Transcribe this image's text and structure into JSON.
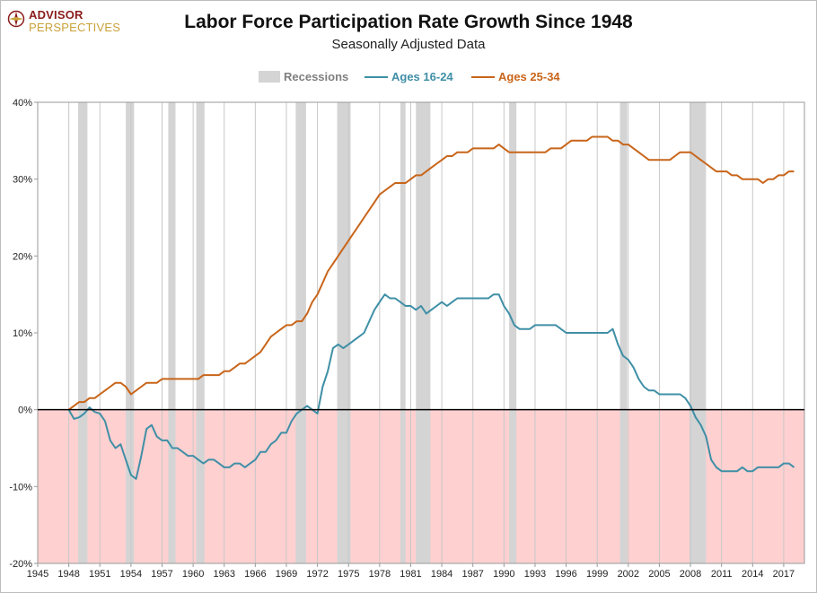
{
  "logo": {
    "line1": "ADVISOR",
    "line2": "PERSPECTIVES"
  },
  "title": "Labor Force Participation Rate Growth Since 1948",
  "subtitle": "Seasonally Adjusted Data",
  "legend": {
    "recessions": "Recessions",
    "series1": "Ages 16-24",
    "series2": "Ages 25-34"
  },
  "colors": {
    "ages_16_24": "#3f8fa6",
    "ages_25_34": "#c8651a",
    "recession": "#d4d4d4",
    "negative_zone": "#ffd0d0",
    "recession_legend_text": "#7f7f7f"
  },
  "chart_data": {
    "type": "line",
    "title": "Labor Force Participation Rate Growth Since 1948",
    "subtitle": "Seasonally Adjusted Data",
    "xlabel": "",
    "ylabel": "",
    "xlim": [
      1945,
      2019
    ],
    "ylim": [
      -20,
      40
    ],
    "y_ticks": [
      "-20%",
      "-10%",
      "0%",
      "10%",
      "20%",
      "30%",
      "40%"
    ],
    "y_tick_values": [
      -20,
      -10,
      0,
      10,
      20,
      30,
      40
    ],
    "x_ticks": [
      "1945",
      "1948",
      "1951",
      "1954",
      "1957",
      "1960",
      "1963",
      "1966",
      "1969",
      "1972",
      "1975",
      "1978",
      "1981",
      "1984",
      "1987",
      "1990",
      "1993",
      "1996",
      "1999",
      "2002",
      "2005",
      "2008",
      "2011",
      "2014",
      "2017"
    ],
    "grid": "vertical",
    "legend_position": "top-center",
    "negative_region_shaded": true,
    "recessions": [
      [
        1948.9,
        1949.8
      ],
      [
        1953.5,
        1954.3
      ],
      [
        1957.6,
        1958.3
      ],
      [
        1960.3,
        1961.1
      ],
      [
        1969.9,
        1970.9
      ],
      [
        1973.9,
        1975.2
      ],
      [
        1980.0,
        1980.5
      ],
      [
        1981.5,
        1982.9
      ],
      [
        1990.5,
        1991.2
      ],
      [
        2001.2,
        2001.9
      ],
      [
        2007.9,
        2009.5
      ]
    ],
    "series": [
      {
        "name": "Ages 16-24",
        "x": [
          1948.0,
          1948.5,
          1949.0,
          1949.5,
          1950.0,
          1950.5,
          1951.0,
          1951.5,
          1952.0,
          1952.5,
          1953.0,
          1953.5,
          1954.0,
          1954.5,
          1955.0,
          1955.5,
          1956.0,
          1956.5,
          1957.0,
          1957.5,
          1958.0,
          1958.5,
          1959.0,
          1959.5,
          1960.0,
          1960.5,
          1961.0,
          1961.5,
          1962.0,
          1962.5,
          1963.0,
          1963.5,
          1964.0,
          1964.5,
          1965.0,
          1965.5,
          1966.0,
          1966.5,
          1967.0,
          1967.5,
          1968.0,
          1968.5,
          1969.0,
          1969.5,
          1970.0,
          1970.5,
          1971.0,
          1971.5,
          1972.0,
          1972.5,
          1973.0,
          1973.5,
          1974.0,
          1974.5,
          1975.0,
          1975.5,
          1976.0,
          1976.5,
          1977.0,
          1977.5,
          1978.0,
          1978.5,
          1979.0,
          1979.5,
          1980.0,
          1980.5,
          1981.0,
          1981.5,
          1982.0,
          1982.5,
          1983.0,
          1983.5,
          1984.0,
          1984.5,
          1985.0,
          1985.5,
          1986.0,
          1986.5,
          1987.0,
          1987.5,
          1988.0,
          1988.5,
          1989.0,
          1989.5,
          1990.0,
          1990.5,
          1991.0,
          1991.5,
          1992.0,
          1992.5,
          1993.0,
          1993.5,
          1994.0,
          1994.5,
          1995.0,
          1995.5,
          1996.0,
          1996.5,
          1997.0,
          1997.5,
          1998.0,
          1998.5,
          1999.0,
          1999.5,
          2000.0,
          2000.5,
          2001.0,
          2001.5,
          2002.0,
          2002.5,
          2003.0,
          2003.5,
          2004.0,
          2004.5,
          2005.0,
          2005.5,
          2006.0,
          2006.5,
          2007.0,
          2007.5,
          2008.0,
          2008.5,
          2009.0,
          2009.5,
          2010.0,
          2010.5,
          2011.0,
          2011.5,
          2012.0,
          2012.5,
          2013.0,
          2013.5,
          2014.0,
          2014.5,
          2015.0,
          2015.5,
          2016.0,
          2016.5,
          2017.0,
          2017.5,
          2018.0
        ],
        "values": [
          0,
          -1.2,
          -1.0,
          -0.5,
          0.3,
          -0.3,
          -0.5,
          -1.5,
          -4.0,
          -5.0,
          -4.5,
          -6.5,
          -8.5,
          -9.0,
          -6.0,
          -2.5,
          -2.0,
          -3.5,
          -4.0,
          -4.0,
          -5.0,
          -5.0,
          -5.5,
          -6.0,
          -6.0,
          -6.5,
          -7.0,
          -6.5,
          -6.5,
          -7.0,
          -7.5,
          -7.5,
          -7.0,
          -7.0,
          -7.5,
          -7.0,
          -6.5,
          -5.5,
          -5.5,
          -4.5,
          -4.0,
          -3.0,
          -3.0,
          -1.5,
          -0.5,
          0.0,
          0.5,
          0.0,
          -0.5,
          3.0,
          5.0,
          8.0,
          8.5,
          8.0,
          8.5,
          9.0,
          9.5,
          10.0,
          11.5,
          13.0,
          14.0,
          15.0,
          14.5,
          14.5,
          14.0,
          13.5,
          13.5,
          13.0,
          13.5,
          12.5,
          13.0,
          13.5,
          14.0,
          13.5,
          14.0,
          14.5,
          14.5,
          14.5,
          14.5,
          14.5,
          14.5,
          14.5,
          15.0,
          15.0,
          13.5,
          12.5,
          11.0,
          10.5,
          10.5,
          10.5,
          11.0,
          11.0,
          11.0,
          11.0,
          11.0,
          10.5,
          10.0,
          10.0,
          10.0,
          10.0,
          10.0,
          10.0,
          10.0,
          10.0,
          10.0,
          10.5,
          8.5,
          7.0,
          6.5,
          5.5,
          4.0,
          3.0,
          2.5,
          2.5,
          2.0,
          2.0,
          2.0,
          2.0,
          2.0,
          1.5,
          0.5,
          -1.0,
          -2.0,
          -3.5,
          -6.5,
          -7.5,
          -8.0,
          -8.0,
          -8.0,
          -8.0,
          -7.5,
          -8.0,
          -8.0,
          -7.5,
          -7.5,
          -7.5,
          -7.5,
          -7.5,
          -7.0,
          -7.0,
          -7.5
        ]
      },
      {
        "name": "Ages 25-34",
        "x": [
          1948.0,
          1948.5,
          1949.0,
          1949.5,
          1950.0,
          1950.5,
          1951.0,
          1951.5,
          1952.0,
          1952.5,
          1953.0,
          1953.5,
          1954.0,
          1954.5,
          1955.0,
          1955.5,
          1956.0,
          1956.5,
          1957.0,
          1957.5,
          1958.0,
          1958.5,
          1959.0,
          1959.5,
          1960.0,
          1960.5,
          1961.0,
          1961.5,
          1962.0,
          1962.5,
          1963.0,
          1963.5,
          1964.0,
          1964.5,
          1965.0,
          1965.5,
          1966.0,
          1966.5,
          1967.0,
          1967.5,
          1968.0,
          1968.5,
          1969.0,
          1969.5,
          1970.0,
          1970.5,
          1971.0,
          1971.5,
          1972.0,
          1972.5,
          1973.0,
          1973.5,
          1974.0,
          1974.5,
          1975.0,
          1975.5,
          1976.0,
          1976.5,
          1977.0,
          1977.5,
          1978.0,
          1978.5,
          1979.0,
          1979.5,
          1980.0,
          1980.5,
          1981.0,
          1981.5,
          1982.0,
          1982.5,
          1983.0,
          1983.5,
          1984.0,
          1984.5,
          1985.0,
          1985.5,
          1986.0,
          1986.5,
          1987.0,
          1987.5,
          1988.0,
          1988.5,
          1989.0,
          1989.5,
          1990.0,
          1990.5,
          1991.0,
          1991.5,
          1992.0,
          1992.5,
          1993.0,
          1993.5,
          1994.0,
          1994.5,
          1995.0,
          1995.5,
          1996.0,
          1996.5,
          1997.0,
          1997.5,
          1998.0,
          1998.5,
          1999.0,
          1999.5,
          2000.0,
          2000.5,
          2001.0,
          2001.5,
          2002.0,
          2002.5,
          2003.0,
          2003.5,
          2004.0,
          2004.5,
          2005.0,
          2005.5,
          2006.0,
          2006.5,
          2007.0,
          2007.5,
          2008.0,
          2008.5,
          2009.0,
          2009.5,
          2010.0,
          2010.5,
          2011.0,
          2011.5,
          2012.0,
          2012.5,
          2013.0,
          2013.5,
          2014.0,
          2014.5,
          2015.0,
          2015.5,
          2016.0,
          2016.5,
          2017.0,
          2017.5,
          2018.0
        ],
        "values": [
          0,
          0.5,
          1.0,
          1.0,
          1.5,
          1.5,
          2.0,
          2.5,
          3.0,
          3.5,
          3.5,
          3.0,
          2.0,
          2.5,
          3.0,
          3.5,
          3.5,
          3.5,
          4.0,
          4.0,
          4.0,
          4.0,
          4.0,
          4.0,
          4.0,
          4.0,
          4.5,
          4.5,
          4.5,
          4.5,
          5.0,
          5.0,
          5.5,
          6.0,
          6.0,
          6.5,
          7.0,
          7.5,
          8.5,
          9.5,
          10.0,
          10.5,
          11.0,
          11.0,
          11.5,
          11.5,
          12.5,
          14.0,
          15.0,
          16.5,
          18.0,
          19.0,
          20.0,
          21.0,
          22.0,
          23.0,
          24.0,
          25.0,
          26.0,
          27.0,
          28.0,
          28.5,
          29.0,
          29.5,
          29.5,
          29.5,
          30.0,
          30.5,
          30.5,
          31.0,
          31.5,
          32.0,
          32.5,
          33.0,
          33.0,
          33.5,
          33.5,
          33.5,
          34.0,
          34.0,
          34.0,
          34.0,
          34.0,
          34.5,
          34.0,
          33.5,
          33.5,
          33.5,
          33.5,
          33.5,
          33.5,
          33.5,
          33.5,
          34.0,
          34.0,
          34.0,
          34.5,
          35.0,
          35.0,
          35.0,
          35.0,
          35.5,
          35.5,
          35.5,
          35.5,
          35.0,
          35.0,
          34.5,
          34.5,
          34.0,
          33.5,
          33.0,
          32.5,
          32.5,
          32.5,
          32.5,
          32.5,
          33.0,
          33.5,
          33.5,
          33.5,
          33.0,
          32.5,
          32.0,
          31.5,
          31.0,
          31.0,
          31.0,
          30.5,
          30.5,
          30.0,
          30.0,
          30.0,
          30.0,
          29.5,
          30.0,
          30.0,
          30.5,
          30.5,
          31.0,
          31.0
        ]
      }
    ]
  }
}
